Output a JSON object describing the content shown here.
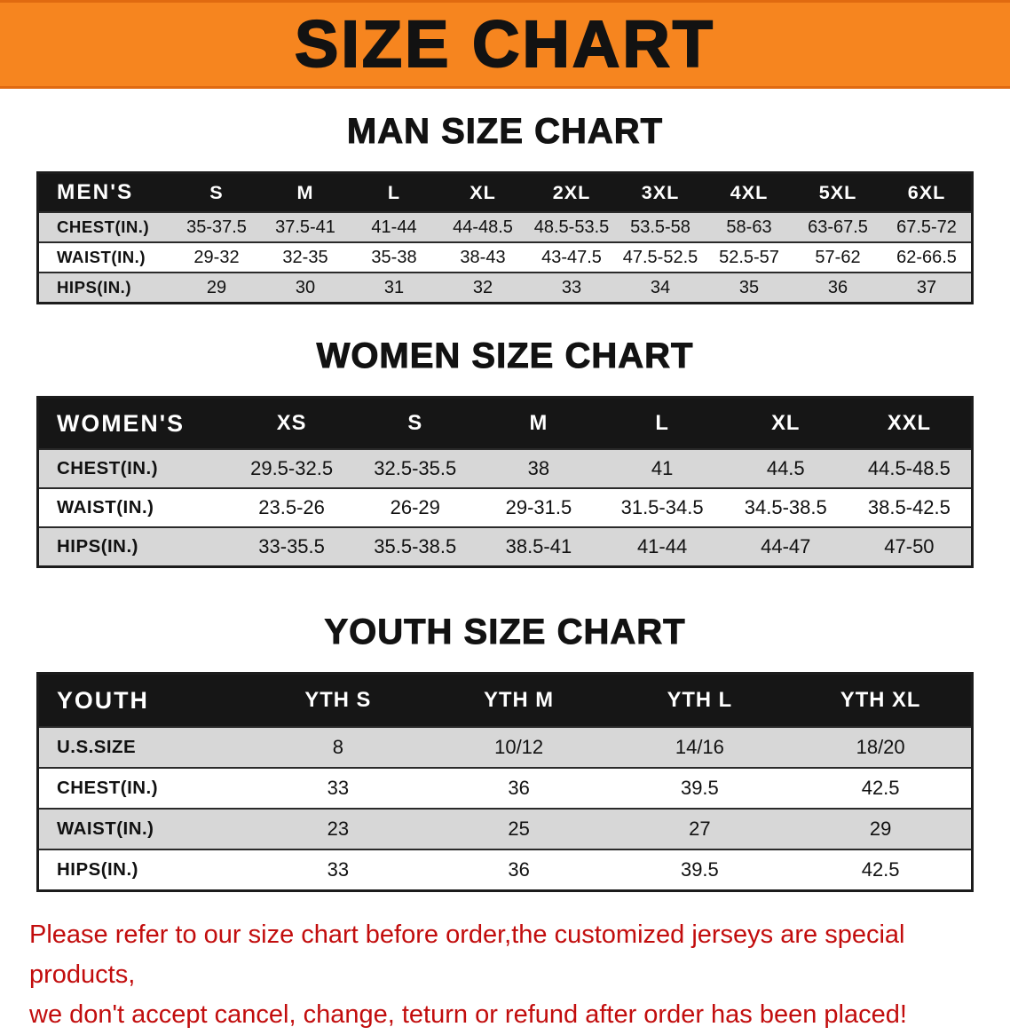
{
  "banner": {
    "title": "SIZE CHART"
  },
  "colors": {
    "banner_bg": "#f6851f",
    "header_band": "#161616",
    "row_alt": "#d7d7d7",
    "disclaimer_text": "#c20d0d"
  },
  "sections": [
    {
      "heading": "MAN SIZE CHART",
      "table": {
        "header": [
          "MEN'S",
          "S",
          "M",
          "L",
          "XL",
          "2XL",
          "3XL",
          "4XL",
          "5XL",
          "6XL"
        ],
        "rows": [
          {
            "label": "CHEST(IN.)",
            "values": [
              "35-37.5",
              "37.5-41",
              "41-44",
              "44-48.5",
              "48.5-53.5",
              "53.5-58",
              "58-63",
              "63-67.5",
              "67.5-72"
            ]
          },
          {
            "label": "WAIST(IN.)",
            "values": [
              "29-32",
              "32-35",
              "35-38",
              "38-43",
              "43-47.5",
              "47.5-52.5",
              "52.5-57",
              "57-62",
              "62-66.5"
            ]
          },
          {
            "label": "HIPS(IN.)",
            "values": [
              "29",
              "30",
              "31",
              "32",
              "33",
              "34",
              "35",
              "36",
              "37"
            ]
          }
        ]
      }
    },
    {
      "heading": "WOMEN SIZE CHART",
      "table": {
        "header": [
          "WOMEN'S",
          "XS",
          "S",
          "M",
          "L",
          "XL",
          "XXL"
        ],
        "rows": [
          {
            "label": "CHEST(IN.)",
            "values": [
              "29.5-32.5",
              "32.5-35.5",
              "38",
              "41",
              "44.5",
              "44.5-48.5"
            ]
          },
          {
            "label": "WAIST(IN.)",
            "values": [
              "23.5-26",
              "26-29",
              "29-31.5",
              "31.5-34.5",
              "34.5-38.5",
              "38.5-42.5"
            ]
          },
          {
            "label": "HIPS(IN.)",
            "values": [
              "33-35.5",
              "35.5-38.5",
              "38.5-41",
              "41-44",
              "44-47",
              "47-50"
            ]
          }
        ]
      }
    },
    {
      "heading": "YOUTH SIZE CHART",
      "table": {
        "header": [
          "YOUTH",
          "YTH S",
          "YTH M",
          "YTH L",
          "YTH XL"
        ],
        "rows": [
          {
            "label": "U.S.SIZE",
            "values": [
              "8",
              "10/12",
              "14/16",
              "18/20"
            ]
          },
          {
            "label": "CHEST(IN.)",
            "values": [
              "33",
              "36",
              "39.5",
              "42.5"
            ]
          },
          {
            "label": "WAIST(IN.)",
            "values": [
              "23",
              "25",
              "27",
              "29"
            ]
          },
          {
            "label": "HIPS(IN.)",
            "values": [
              "33",
              "36",
              "39.5",
              "42.5"
            ]
          }
        ]
      }
    }
  ],
  "disclaimer": {
    "line1": "Please refer to our size chart before order,the customized jerseys are special products,",
    "line2": "we don't accept cancel, change, teturn or refund after order has been placed!"
  }
}
